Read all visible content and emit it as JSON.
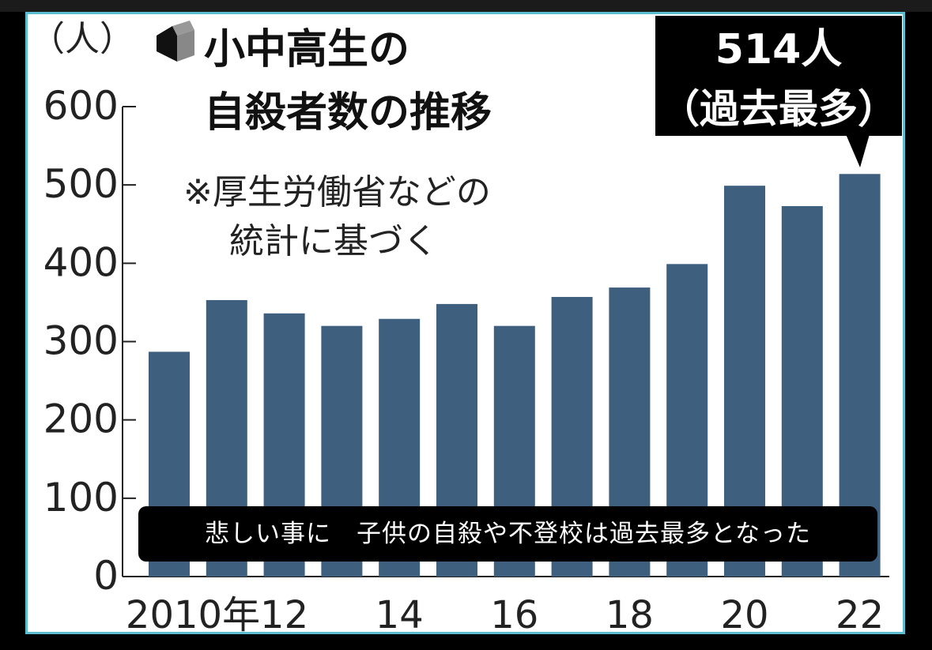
{
  "chart_data": {
    "type": "bar",
    "title": "小中高生の自殺者数の推移",
    "note_line1": "※厚生労働省などの",
    "note_line2": "統計に基づく",
    "ylabel": "（人）",
    "ylim": [
      0,
      600
    ],
    "yticks": [
      "0",
      "100",
      "200",
      "300",
      "400",
      "500",
      "600"
    ],
    "categories": [
      "2010",
      "2011",
      "2012",
      "2013",
      "2014",
      "2015",
      "2016",
      "2017",
      "2018",
      "2019",
      "2020",
      "2021",
      "2022"
    ],
    "xtick_labels": {
      "2010": "2010年",
      "2012": "12",
      "2014": "14",
      "2016": "16",
      "2018": "18",
      "2020": "20",
      "2022": "22"
    },
    "values": [
      287,
      353,
      336,
      320,
      329,
      348,
      320,
      357,
      369,
      399,
      499,
      473,
      514
    ],
    "bar_color": "#3f5f7f",
    "callout_line1": "514人",
    "callout_line2": "（過去最多）",
    "grid": false
  },
  "caption": "悲しい事に　子供の自殺や不登校は過去最多となった",
  "icon": "cube-icon"
}
